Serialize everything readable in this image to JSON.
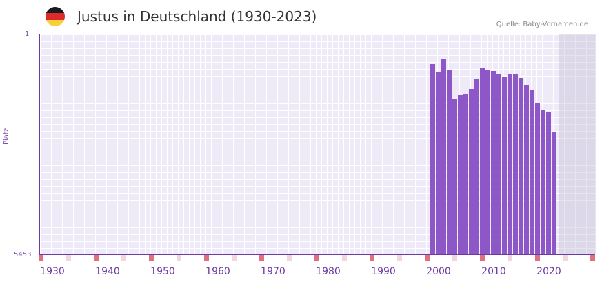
{
  "header": {
    "title": "Justus in Deutschland (1930-2023)",
    "source": "Quelle: Baby-Vornamen.de",
    "flag_colors": [
      "#1a1a1a",
      "#dd2b2b",
      "#f7d03a"
    ]
  },
  "axes": {
    "y_top": "1",
    "y_bottom": "5453",
    "y_title": "Platz",
    "x_ticks": [
      "1930",
      "1940",
      "1950",
      "1960",
      "1970",
      "1980",
      "1990",
      "2000",
      "2010",
      "2020"
    ]
  },
  "colors": {
    "bar": "#8e57c8",
    "axis": "#6b3ba3",
    "marker": "#e07080"
  },
  "chart_data": {
    "type": "bar",
    "title": "Justus in Deutschland (1930-2023)",
    "xlabel": "",
    "ylabel": "Platz",
    "ylim": [
      5453,
      1
    ],
    "y_inverted": true,
    "categories": [
      "1999",
      "2000",
      "2001",
      "2002",
      "2003",
      "2004",
      "2005",
      "2006",
      "2007",
      "2008",
      "2009",
      "2010",
      "2011",
      "2012",
      "2013",
      "2014",
      "2015",
      "2016",
      "2017",
      "2018",
      "2019",
      "2020",
      "2021"
    ],
    "values": [
      733,
      937,
      597,
      886,
      1601,
      1516,
      1499,
      1363,
      1090,
      835,
      886,
      903,
      971,
      1039,
      988,
      971,
      1073,
      1278,
      1380,
      1703,
      1890,
      1941,
      2418
    ],
    "annotation": "Quelle: Baby-Vornamen.de"
  }
}
